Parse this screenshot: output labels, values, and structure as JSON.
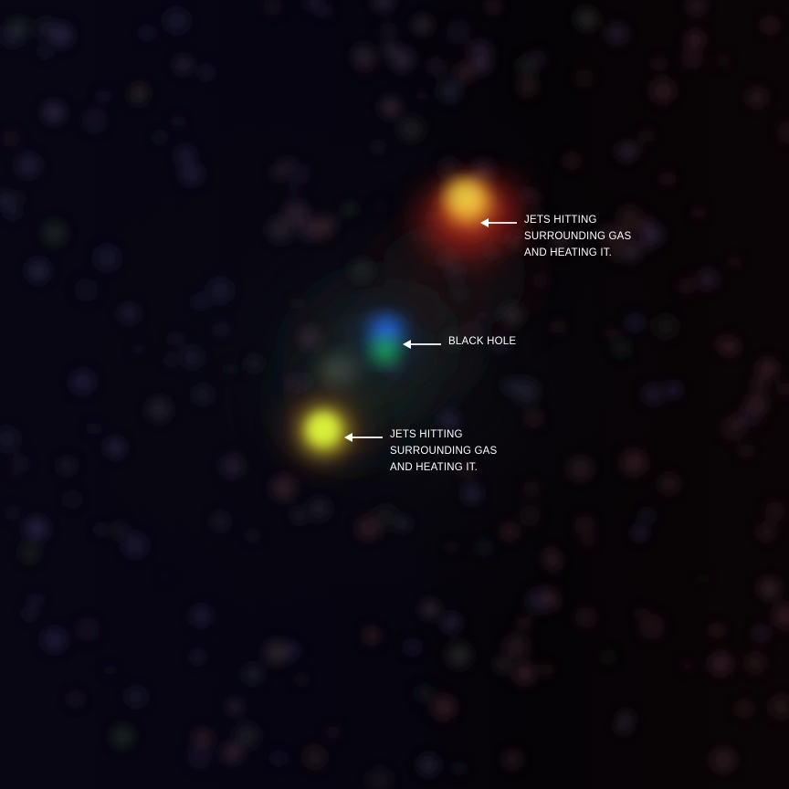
{
  "annotations": {
    "jets_upper": {
      "text": "JETS HITTING\nSURROUNDING GAS\nAND HEATING IT."
    },
    "black_hole": {
      "text": "BLACK HOLE"
    },
    "jets_lower": {
      "text": "JETS HITTING\nSURROUNDING GAS\nAND HEATING IT."
    }
  },
  "colors": {
    "background": "#040206",
    "jet_upper_core": "#f2c23a",
    "jet_upper_halo": "#c8321e",
    "black_hole_core": "#2a7cff",
    "black_hole_green": "#22c85a",
    "jet_lower_core": "#d8f23a",
    "label_text": "#ffffff"
  }
}
